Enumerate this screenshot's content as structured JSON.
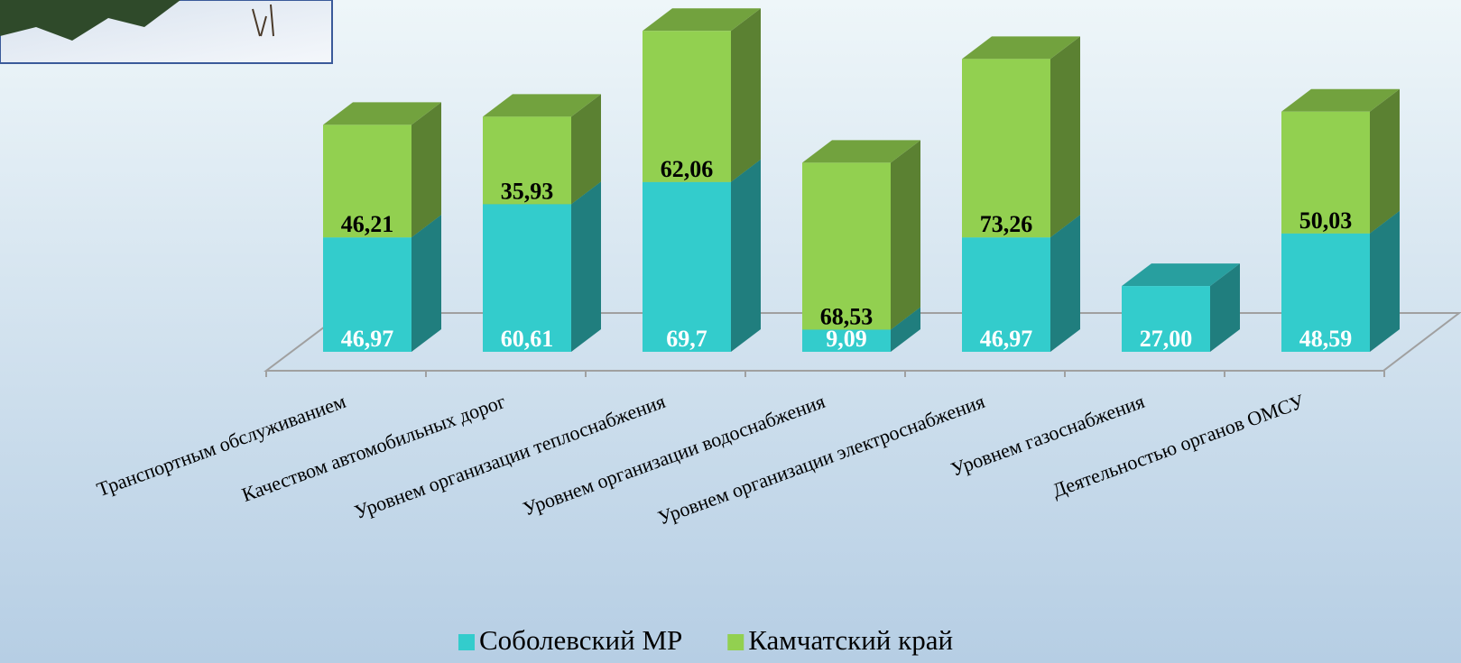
{
  "chart_data": {
    "type": "bar3d-stacked",
    "categories": [
      "Транспортным обслуживанием",
      "Качеством автомобильных дорог",
      "Уровнем организации теплоснабжения",
      "Уровнем организации водоснабжения",
      "Уровнем организации электроснабжения",
      "Уровнем газоснабжения",
      "Деятельностью органов ОМСУ"
    ],
    "series": [
      {
        "name": "Соболевский МР",
        "color": "#33cccc",
        "values": [
          46.97,
          60.61,
          69.7,
          9.09,
          46.97,
          27.0,
          48.59
        ],
        "value_labels": [
          "46,97",
          "60,61",
          "69,7",
          "9,09",
          "46,97",
          "27,00",
          "48,59"
        ]
      },
      {
        "name": "Камчатский край",
        "color": "#92d050",
        "values": [
          46.21,
          35.93,
          62.06,
          68.53,
          73.26,
          null,
          50.03
        ],
        "value_labels": [
          "46,21",
          "35,93",
          "62,06",
          "68,53",
          "73,26",
          null,
          "50,03"
        ]
      }
    ]
  }
}
